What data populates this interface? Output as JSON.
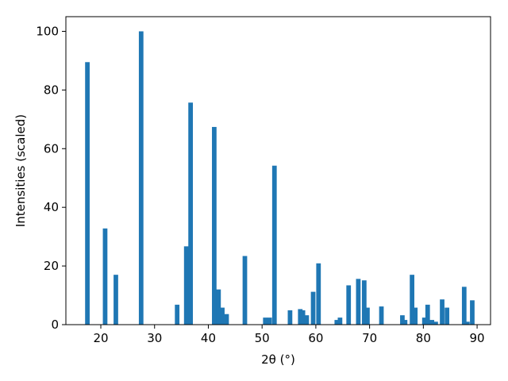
{
  "chart_data": {
    "type": "bar",
    "xlabel": "2θ (°)",
    "ylabel": "Intensities (scaled)",
    "xlim": [
      13.5,
      92.5
    ],
    "ylim": [
      0,
      105
    ],
    "xticks": [
      20,
      30,
      40,
      50,
      60,
      70,
      80,
      90
    ],
    "yticks": [
      0,
      20,
      40,
      60,
      80,
      100
    ],
    "bar_width": 0.85,
    "color": "#1f77b4",
    "x": [
      17.5,
      20.8,
      22.8,
      27.5,
      34.2,
      35.9,
      36.7,
      41.1,
      41.9,
      42.6,
      43.4,
      46.8,
      50.6,
      51.4,
      52.3,
      55.2,
      57.1,
      57.6,
      58.3,
      59.5,
      60.5,
      63.9,
      64.5,
      66.1,
      67.9,
      69.0,
      69.6,
      72.2,
      76.1,
      76.6,
      77.9,
      78.5,
      80.2,
      80.8,
      81.6,
      82.3,
      83.5,
      84.4,
      87.6,
      88.2,
      89.1
    ],
    "values": [
      89.5,
      32.8,
      17.0,
      100.0,
      6.8,
      26.7,
      75.7,
      67.4,
      12.0,
      5.8,
      3.6,
      23.4,
      2.4,
      2.4,
      54.2,
      4.9,
      5.3,
      4.9,
      3.2,
      11.2,
      20.9,
      1.6,
      2.4,
      13.4,
      15.6,
      15.1,
      5.8,
      6.2,
      3.2,
      1.6,
      17.0,
      5.8,
      2.4,
      6.8,
      1.6,
      1.0,
      8.6,
      5.8,
      12.9,
      1.0,
      8.3
    ]
  }
}
